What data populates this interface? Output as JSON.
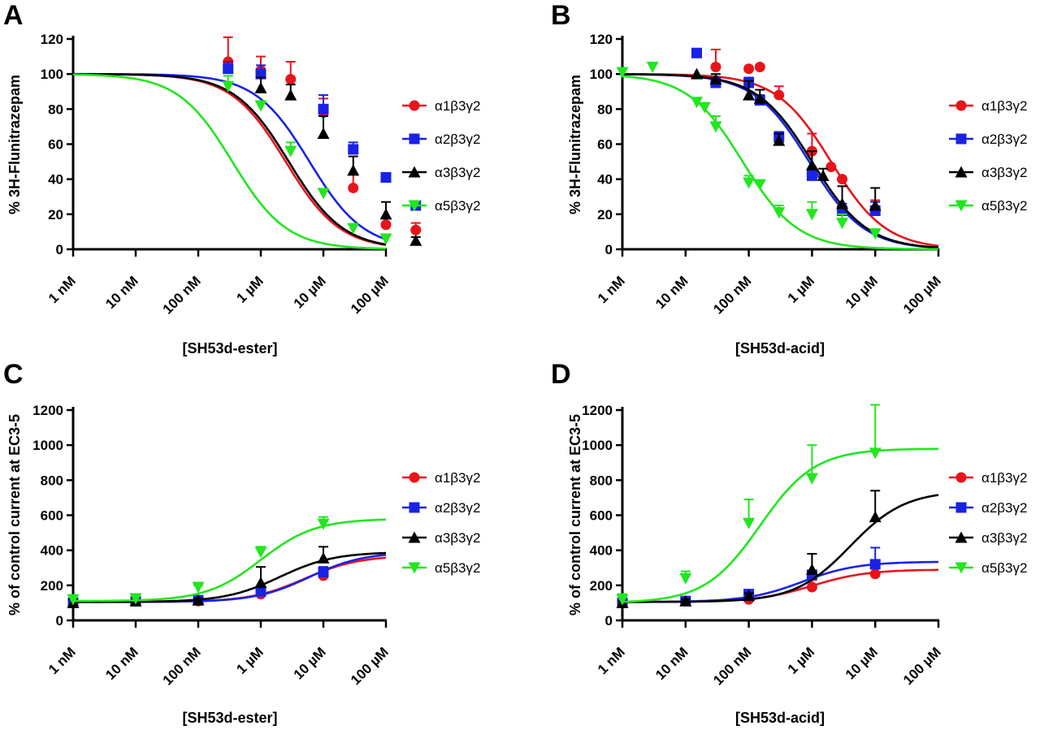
{
  "series_names": [
    "α1β3γ2",
    "α2β3γ2",
    "α3β3γ2",
    "α5β3γ2"
  ],
  "series_colors": [
    "#e8141b",
    "#1a22e6",
    "#000000",
    "#22e61f"
  ],
  "series_markers": [
    "circle",
    "square",
    "triangle-up",
    "triangle-down"
  ],
  "x_ticks": [
    "1 nM",
    "10 nM",
    "100 nM",
    "1 µM",
    "10 µM",
    "100 µM"
  ],
  "chart_data": [
    {
      "panel": "A",
      "type": "scatter",
      "xlabel": "[SH53d-ester]",
      "ylabel": "% 3H-Flunitrazepam",
      "x_scale": "log",
      "xlim": [
        "1 nM",
        "100 µM"
      ],
      "ylim": [
        0,
        120
      ],
      "yticks": [
        0,
        20,
        40,
        60,
        80,
        100,
        120
      ],
      "legend": "right",
      "series": [
        {
          "name": "α1β3γ2",
          "fit": {
            "top": 100,
            "bottom": 0,
            "center": "2.5 µM",
            "hill": -1
          },
          "points": [
            {
              "x": "300 nM",
              "y": 107,
              "err": 14
            },
            {
              "x": "1 µM",
              "y": 102,
              "err": 8
            },
            {
              "x": "3 µM",
              "y": 97,
              "err": 10
            },
            {
              "x": "10 µM",
              "y": 78,
              "err": 8
            },
            {
              "x": "30 µM",
              "y": 35,
              "err": 8
            },
            {
              "x": "100 µM",
              "y": 14,
              "err": 4
            },
            {
              "x": "300 µM",
              "y": 11,
              "err": 4
            }
          ]
        },
        {
          "name": "α2β3γ2",
          "fit": {
            "top": 100,
            "bottom": 0,
            "center": "6 µM",
            "hill": -1
          },
          "points": [
            {
              "x": "300 nM",
              "y": 103,
              "err": 4
            },
            {
              "x": "1 µM",
              "y": 100,
              "err": 5
            },
            {
              "x": "10 µM",
              "y": 80,
              "err": 8
            },
            {
              "x": "30 µM",
              "y": 57,
              "err": 4
            },
            {
              "x": "100 µM",
              "y": 41,
              "err": 2
            },
            {
              "x": "300 µM",
              "y": 25,
              "err": 2
            }
          ]
        },
        {
          "name": "α3β3γ2",
          "fit": {
            "top": 100,
            "bottom": 0,
            "center": "2.8 µM",
            "hill": -1
          },
          "points": [
            {
              "x": "1 µM",
              "y": 92,
              "err": 6
            },
            {
              "x": "3 µM",
              "y": 88,
              "err": 6
            },
            {
              "x": "10 µM",
              "y": 66,
              "err": 10
            },
            {
              "x": "30 µM",
              "y": 45,
              "err": 8
            },
            {
              "x": "100 µM",
              "y": 20,
              "err": 7
            },
            {
              "x": "300 µM",
              "y": 5,
              "err": 2
            }
          ]
        },
        {
          "name": "α5β3γ2",
          "fit": {
            "top": 100,
            "bottom": 0,
            "center": "350 nM",
            "hill": -1
          },
          "points": [
            {
              "x": "300 nM",
              "y": 93,
              "err": 6
            },
            {
              "x": "1 µM",
              "y": 82,
              "err": 2
            },
            {
              "x": "3 µM",
              "y": 56,
              "err": 5
            },
            {
              "x": "10 µM",
              "y": 32,
              "err": 2
            },
            {
              "x": "30 µM",
              "y": 12,
              "err": 2
            },
            {
              "x": "100 µM",
              "y": 6,
              "err": 2
            }
          ]
        }
      ]
    },
    {
      "panel": "B",
      "type": "scatter",
      "xlabel": "[SH53d-acid]",
      "ylabel": "% 3H-Flunitrazepam",
      "x_scale": "log",
      "xlim": [
        "1 nM",
        "100 µM"
      ],
      "ylim": [
        0,
        120
      ],
      "yticks": [
        0,
        20,
        40,
        60,
        80,
        100,
        120
      ],
      "legend": "right",
      "series": [
        {
          "name": "α1β3γ2",
          "fit": {
            "top": 100,
            "bottom": 0,
            "center": "2 µM",
            "hill": -1
          },
          "points": [
            {
              "x": "30 nM",
              "y": 104,
              "err": 10
            },
            {
              "x": "100 nM",
              "y": 103,
              "err": 0
            },
            {
              "x": "150 nM",
              "y": 104,
              "err": 0
            },
            {
              "x": "300 nM",
              "y": 88,
              "err": 5
            },
            {
              "x": "1 µM",
              "y": 56,
              "err": 10
            },
            {
              "x": "2 µM",
              "y": 47,
              "err": 0
            },
            {
              "x": "3 µM",
              "y": 40,
              "err": 0
            },
            {
              "x": "10 µM",
              "y": 23,
              "err": 5
            }
          ]
        },
        {
          "name": "α2β3γ2",
          "fit": {
            "top": 100,
            "bottom": 0,
            "center": "900 nM",
            "hill": -1
          },
          "points": [
            {
              "x": "15 nM",
              "y": 112,
              "err": 0
            },
            {
              "x": "30 nM",
              "y": 95,
              "err": 3
            },
            {
              "x": "100 nM",
              "y": 95,
              "err": 3
            },
            {
              "x": "150 nM",
              "y": 85,
              "err": 3
            },
            {
              "x": "300 nM",
              "y": 64,
              "err": 3
            },
            {
              "x": "1 µM",
              "y": 42,
              "err": 4
            },
            {
              "x": "3 µM",
              "y": 22,
              "err": 4
            },
            {
              "x": "10 µM",
              "y": 22,
              "err": 5
            }
          ]
        },
        {
          "name": "α3β3γ2",
          "fit": {
            "top": 100,
            "bottom": 0,
            "center": "1 µM",
            "hill": -1
          },
          "points": [
            {
              "x": "15 nM",
              "y": 100,
              "err": 0
            },
            {
              "x": "30 nM",
              "y": 97,
              "err": 3
            },
            {
              "x": "100 nM",
              "y": 88,
              "err": 8
            },
            {
              "x": "150 nM",
              "y": 86,
              "err": 5
            },
            {
              "x": "300 nM",
              "y": 62,
              "err": 4
            },
            {
              "x": "1 µM",
              "y": 48,
              "err": 8
            },
            {
              "x": "1.5 µM",
              "y": 42,
              "err": 4
            },
            {
              "x": "3 µM",
              "y": 26,
              "err": 10
            },
            {
              "x": "10 µM",
              "y": 25,
              "err": 10
            }
          ]
        },
        {
          "name": "α5β3γ2",
          "fit": {
            "top": 100,
            "bottom": 0,
            "center": "80 nM",
            "hill": -1
          },
          "points": [
            {
              "x": "1 nM",
              "y": 101,
              "err": 0
            },
            {
              "x": "3 nM",
              "y": 104,
              "err": 0
            },
            {
              "x": "15 nM",
              "y": 84,
              "err": 0
            },
            {
              "x": "20 nM",
              "y": 81,
              "err": 0
            },
            {
              "x": "30 nM",
              "y": 70,
              "err": 6
            },
            {
              "x": "100 nM",
              "y": 38,
              "err": 4
            },
            {
              "x": "150 nM",
              "y": 37,
              "err": 0
            },
            {
              "x": "300 nM",
              "y": 21,
              "err": 4
            },
            {
              "x": "1 µM",
              "y": 20,
              "err": 7
            },
            {
              "x": "3 µM",
              "y": 15,
              "err": 5
            },
            {
              "x": "10 µM",
              "y": 9,
              "err": 2
            }
          ]
        }
      ]
    },
    {
      "panel": "C",
      "type": "scatter",
      "xlabel": "[SH53d-ester]",
      "ylabel": "% of control current at EC3-5",
      "x_scale": "log",
      "xlim": [
        "1 nM",
        "100 µM"
      ],
      "ylim": [
        0,
        1200
      ],
      "yticks": [
        0,
        200,
        400,
        600,
        800,
        1000,
        1200
      ],
      "legend": "right",
      "series": [
        {
          "name": "α1β3γ2",
          "fit": {
            "bottom": 105,
            "top": 370,
            "center": "5 µM",
            "hill": 1
          },
          "points": [
            {
              "x": "1 nM",
              "y": 100,
              "err": 15
            },
            {
              "x": "10 nM",
              "y": 110,
              "err": 10
            },
            {
              "x": "100 nM",
              "y": 110,
              "err": 10
            },
            {
              "x": "1 µM",
              "y": 150,
              "err": 10
            },
            {
              "x": "10 µM",
              "y": 255,
              "err": 40
            }
          ]
        },
        {
          "name": "α2β3γ2",
          "fit": {
            "bottom": 105,
            "top": 390,
            "center": "6 µM",
            "hill": 1
          },
          "points": [
            {
              "x": "1 nM",
              "y": 100,
              "err": 10
            },
            {
              "x": "10 nM",
              "y": 110,
              "err": 10
            },
            {
              "x": "100 nM",
              "y": 115,
              "err": 10
            },
            {
              "x": "1 µM",
              "y": 165,
              "err": 15
            },
            {
              "x": "10 µM",
              "y": 275,
              "err": 30
            }
          ]
        },
        {
          "name": "α3β3γ2",
          "fit": {
            "bottom": 105,
            "top": 390,
            "center": "2 µM",
            "hill": 1
          },
          "points": [
            {
              "x": "1 nM",
              "y": 100,
              "err": 20
            },
            {
              "x": "10 nM",
              "y": 110,
              "err": 10
            },
            {
              "x": "100 nM",
              "y": 115,
              "err": 10
            },
            {
              "x": "1 µM",
              "y": 215,
              "err": 90
            },
            {
              "x": "10 µM",
              "y": 355,
              "err": 65
            }
          ]
        },
        {
          "name": "α5β3γ2",
          "fit": {
            "bottom": 110,
            "top": 580,
            "center": "1 µM",
            "hill": 1
          },
          "points": [
            {
              "x": "1 nM",
              "y": 120,
              "err": 15
            },
            {
              "x": "10 nM",
              "y": 125,
              "err": 15
            },
            {
              "x": "100 nM",
              "y": 190,
              "err": 10
            },
            {
              "x": "1 µM",
              "y": 390,
              "err": 30
            },
            {
              "x": "10 µM",
              "y": 550,
              "err": 40
            }
          ]
        }
      ]
    },
    {
      "panel": "D",
      "type": "scatter",
      "xlabel": "[SH53d-acid]",
      "ylabel": "% of control current at EC3-5",
      "x_scale": "log",
      "xlim": [
        "1 nM",
        "100 µM"
      ],
      "ylim": [
        0,
        1200
      ],
      "yticks": [
        0,
        200,
        400,
        600,
        800,
        1000,
        1200
      ],
      "legend": "right",
      "series": [
        {
          "name": "α1β3γ2",
          "fit": {
            "bottom": 105,
            "top": 290,
            "center": "1 µM",
            "hill": 1
          },
          "points": [
            {
              "x": "1 nM",
              "y": 100,
              "err": 10
            },
            {
              "x": "10 nM",
              "y": 110,
              "err": 10
            },
            {
              "x": "100 nM",
              "y": 120,
              "err": 10
            },
            {
              "x": "1 µM",
              "y": 190,
              "err": 40
            },
            {
              "x": "10 µM",
              "y": 265,
              "err": 40
            }
          ]
        },
        {
          "name": "α2β3γ2",
          "fit": {
            "bottom": 105,
            "top": 335,
            "center": "700 nM",
            "hill": 1
          },
          "points": [
            {
              "x": "1 nM",
              "y": 100,
              "err": 10
            },
            {
              "x": "10 nM",
              "y": 110,
              "err": 10
            },
            {
              "x": "100 nM",
              "y": 150,
              "err": 20
            },
            {
              "x": "1 µM",
              "y": 260,
              "err": 120
            },
            {
              "x": "10 µM",
              "y": 320,
              "err": 95
            }
          ]
        },
        {
          "name": "α3β3γ2",
          "fit": {
            "bottom": 105,
            "top": 740,
            "center": "4 µM",
            "hill": 1
          },
          "points": [
            {
              "x": "1 nM",
              "y": 100,
              "err": 10
            },
            {
              "x": "10 nM",
              "y": 110,
              "err": 10
            },
            {
              "x": "100 nM",
              "y": 140,
              "err": 15
            },
            {
              "x": "1 µM",
              "y": 290,
              "err": 90
            },
            {
              "x": "10 µM",
              "y": 590,
              "err": 150
            }
          ]
        },
        {
          "name": "α5β3γ2",
          "fit": {
            "bottom": 100,
            "top": 980,
            "center": "150 nM",
            "hill": 1
          },
          "points": [
            {
              "x": "1 nM",
              "y": 120,
              "err": 30
            },
            {
              "x": "10 nM",
              "y": 240,
              "err": 40
            },
            {
              "x": "100 nM",
              "y": 555,
              "err": 135
            },
            {
              "x": "1 µM",
              "y": 810,
              "err": 190
            },
            {
              "x": "10 µM",
              "y": 955,
              "err": 275
            }
          ]
        }
      ]
    }
  ]
}
